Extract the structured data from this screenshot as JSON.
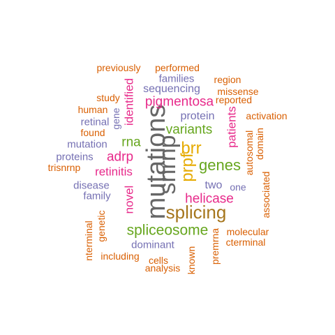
{
  "colors": {
    "orange": "#D95F02",
    "purple": "#7570B3",
    "magenta": "#E7298A",
    "green": "#66A61E",
    "gold": "#E6AB02",
    "brown": "#A6761D",
    "gray": "#666666"
  },
  "words": [
    {
      "text": "mutations",
      "color": "gray"
    },
    {
      "text": "snrnp",
      "color": "gray"
    },
    {
      "text": "splicing",
      "color": "brown"
    },
    {
      "text": "prpf",
      "color": "gold"
    },
    {
      "text": "brr",
      "color": "gold"
    },
    {
      "text": "genes",
      "color": "green"
    },
    {
      "text": "variants",
      "color": "green"
    },
    {
      "text": "spliceosome",
      "color": "green"
    },
    {
      "text": "helicase",
      "color": "magenta"
    },
    {
      "text": "pigmentosa",
      "color": "magenta"
    },
    {
      "text": "rna",
      "color": "green"
    },
    {
      "text": "adrp",
      "color": "magenta"
    },
    {
      "text": "retinitis",
      "color": "magenta"
    },
    {
      "text": "patients",
      "color": "magenta"
    },
    {
      "text": "identified",
      "color": "magenta"
    },
    {
      "text": "novel",
      "color": "magenta"
    },
    {
      "text": "sequencing",
      "color": "purple"
    },
    {
      "text": "two",
      "color": "purple"
    },
    {
      "text": "protein",
      "color": "purple"
    },
    {
      "text": "families",
      "color": "purple"
    },
    {
      "text": "mutation",
      "color": "purple"
    },
    {
      "text": "disease",
      "color": "purple"
    },
    {
      "text": "retinal",
      "color": "purple"
    },
    {
      "text": "dominant",
      "color": "purple"
    },
    {
      "text": "proteins",
      "color": "purple"
    },
    {
      "text": "one",
      "color": "purple"
    },
    {
      "text": "family",
      "color": "purple"
    },
    {
      "text": "gene",
      "color": "purple"
    },
    {
      "text": "previously",
      "color": "orange"
    },
    {
      "text": "performed",
      "color": "orange"
    },
    {
      "text": "region",
      "color": "orange"
    },
    {
      "text": "missense",
      "color": "orange"
    },
    {
      "text": "reported",
      "color": "orange"
    },
    {
      "text": "study",
      "color": "orange"
    },
    {
      "text": "human",
      "color": "orange"
    },
    {
      "text": "activation",
      "color": "orange"
    },
    {
      "text": "found",
      "color": "orange"
    },
    {
      "text": "autosomal",
      "color": "orange"
    },
    {
      "text": "domain",
      "color": "orange"
    },
    {
      "text": "trisnrnp",
      "color": "orange"
    },
    {
      "text": "associated",
      "color": "orange"
    },
    {
      "text": "molecular",
      "color": "orange"
    },
    {
      "text": "cterminal",
      "color": "orange"
    },
    {
      "text": "nterminal",
      "color": "orange"
    },
    {
      "text": "genetic",
      "color": "orange"
    },
    {
      "text": "including",
      "color": "orange"
    },
    {
      "text": "cells",
      "color": "orange"
    },
    {
      "text": "analysis",
      "color": "orange"
    },
    {
      "text": "known",
      "color": "orange"
    },
    {
      "text": "premrna",
      "color": "orange"
    }
  ]
}
